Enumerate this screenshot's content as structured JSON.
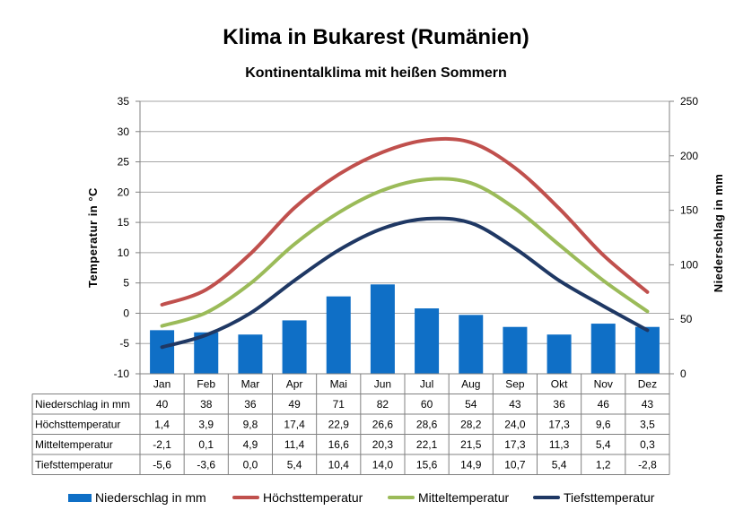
{
  "title": "Klima in Bukarest (Rumänien)",
  "subtitle": "Kontinentalklima mit heißen Sommern",
  "chart_data": {
    "type": "bar+line",
    "categories": [
      "Jan",
      "Feb",
      "Mar",
      "Apr",
      "Mai",
      "Jun",
      "Jul",
      "Aug",
      "Sep",
      "Okt",
      "Nov",
      "Dez"
    ],
    "left_axis": {
      "label": "Temperatur in °C",
      "range": [
        -10,
        35
      ],
      "ticks": [
        "-10",
        "-5",
        "0",
        "5",
        "10",
        "15",
        "20",
        "25",
        "30",
        "35"
      ]
    },
    "right_axis": {
      "label": "Niederschlag in mm",
      "range": [
        0,
        250
      ],
      "ticks": [
        "0",
        "50",
        "100",
        "150",
        "200",
        "250"
      ]
    },
    "grid": true,
    "legend_position": "bottom",
    "bar_series": {
      "name": "Niederschlag in mm",
      "color": "#0f6fc6",
      "axis": "right",
      "values": [
        40,
        38,
        36,
        49,
        71,
        82,
        60,
        54,
        43,
        36,
        46,
        43
      ]
    },
    "line_series": [
      {
        "name": "Höchsttemperatur",
        "color": "#c0504d",
        "axis": "left",
        "values": [
          1.4,
          3.9,
          9.8,
          17.4,
          22.9,
          26.6,
          28.6,
          28.2,
          24.0,
          17.3,
          9.6,
          3.5
        ]
      },
      {
        "name": "Mitteltemperatur",
        "color": "#9bbb59",
        "axis": "left",
        "values": [
          -2.1,
          0.1,
          4.9,
          11.4,
          16.6,
          20.3,
          22.1,
          21.5,
          17.3,
          11.3,
          5.4,
          0.3
        ]
      },
      {
        "name": "Tiefsttemperatur",
        "color": "#1f3864",
        "axis": "left",
        "values": [
          -5.6,
          -3.6,
          0.0,
          5.4,
          10.4,
          14.0,
          15.6,
          14.9,
          10.7,
          5.4,
          1.2,
          -2.8
        ]
      }
    ],
    "table": {
      "rows": [
        {
          "label": "Niederschlag in mm",
          "cells": [
            "40",
            "38",
            "36",
            "49",
            "71",
            "82",
            "60",
            "54",
            "43",
            "36",
            "46",
            "43"
          ]
        },
        {
          "label": "Höchsttemperatur",
          "cells": [
            "1,4",
            "3,9",
            "9,8",
            "17,4",
            "22,9",
            "26,6",
            "28,6",
            "28,2",
            "24,0",
            "17,3",
            "9,6",
            "3,5"
          ]
        },
        {
          "label": "Mitteltemperatur",
          "cells": [
            "-2,1",
            "0,1",
            "4,9",
            "11,4",
            "16,6",
            "20,3",
            "22,1",
            "21,5",
            "17,3",
            "11,3",
            "5,4",
            "0,3"
          ]
        },
        {
          "label": "Tiefsttemperatur",
          "cells": [
            "-5,6",
            "-3,6",
            "0,0",
            "5,4",
            "10,4",
            "14,0",
            "15,6",
            "14,9",
            "10,7",
            "5,4",
            "1,2",
            "-2,8"
          ]
        }
      ]
    }
  },
  "legend": [
    {
      "label": "Niederschlag in mm",
      "kind": "bar",
      "color": "#0f6fc6"
    },
    {
      "label": "Höchsttemperatur",
      "kind": "line",
      "color": "#c0504d"
    },
    {
      "label": "Mitteltemperatur",
      "kind": "line",
      "color": "#9bbb59"
    },
    {
      "label": "Tiefsttemperatur",
      "kind": "line",
      "color": "#1f3864"
    }
  ]
}
